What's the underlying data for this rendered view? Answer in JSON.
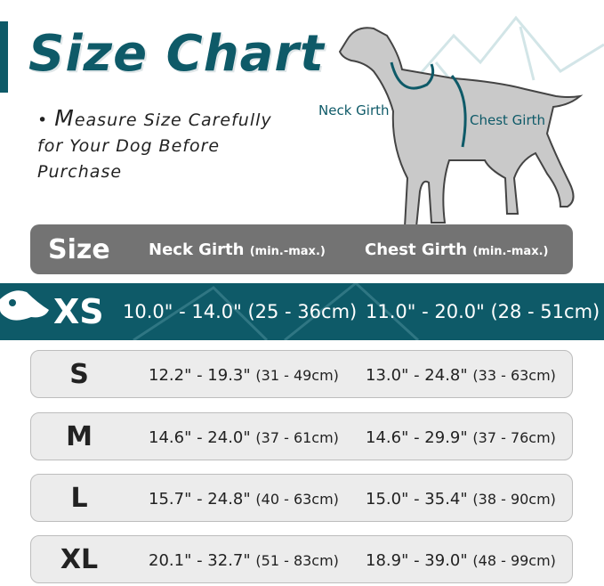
{
  "title": "Size Chart",
  "note": {
    "bullet": "•",
    "first_letter": "M",
    "text": "easure Size Carefully for Your Dog Before Purchase"
  },
  "diagram": {
    "neck_label": "Neck Girth",
    "chest_label": "Chest Girth"
  },
  "colors": {
    "accent": "#0e5a68",
    "header_bg": "#737373",
    "row_bg": "#ececec"
  },
  "table": {
    "headers": {
      "size": "Size",
      "neck": "Neck Girth",
      "neck_unit": "(min.-max.)",
      "chest": "Chest Girth",
      "chest_unit": "(min.-max.)"
    },
    "rows": [
      {
        "size": "XS",
        "neck": "10.0\" - 14.0\"",
        "neck_cm": "(25 - 36cm)",
        "chest": "11.0\" - 20.0\"",
        "chest_cm": "(28 - 51cm)",
        "highlighted": true
      },
      {
        "size": "S",
        "neck": "12.2\" - 19.3\"",
        "neck_cm": "(31 - 49cm)",
        "chest": "13.0\" - 24.8\"",
        "chest_cm": "(33 - 63cm)"
      },
      {
        "size": "M",
        "neck": "14.6\" - 24.0\"",
        "neck_cm": "(37 - 61cm)",
        "chest": "14.6\" - 29.9\"",
        "chest_cm": "(37 - 76cm)"
      },
      {
        "size": "L",
        "neck": "15.7\" - 24.8\"",
        "neck_cm": "(40 - 63cm)",
        "chest": "15.0\" - 35.4\"",
        "chest_cm": "(38 - 90cm)"
      },
      {
        "size": "XL",
        "neck": "20.1\" - 32.7\"",
        "neck_cm": "(51 - 83cm)",
        "chest": "18.9\" - 39.0\"",
        "chest_cm": "(48 - 99cm)"
      }
    ]
  }
}
